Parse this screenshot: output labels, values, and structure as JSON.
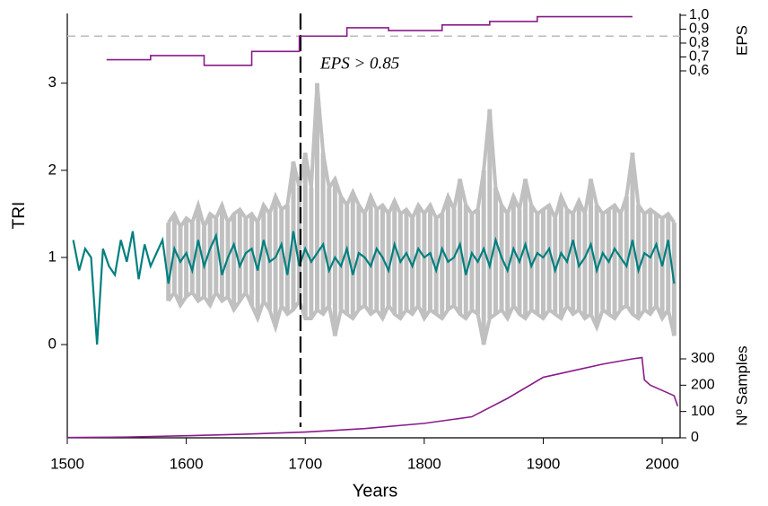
{
  "chart_data": [
    {
      "type": "range-line",
      "xlabel": "Years",
      "ylabel": "TRI",
      "xlim": [
        1500,
        2015
      ],
      "xticks": [
        1500,
        1600,
        1700,
        1800,
        1900,
        2000
      ],
      "ylim": [
        -1.07,
        3.8
      ],
      "yticks": [
        0,
        1,
        2,
        3
      ],
      "vline": 1696,
      "annotation": "EPS > 0.85",
      "x": [
        1505,
        1510,
        1515,
        1520,
        1525,
        1530,
        1535,
        1540,
        1545,
        1550,
        1555,
        1560,
        1565,
        1570,
        1575,
        1580,
        1585,
        1590,
        1595,
        1600,
        1605,
        1610,
        1615,
        1620,
        1625,
        1630,
        1635,
        1640,
        1645,
        1650,
        1655,
        1660,
        1665,
        1670,
        1675,
        1680,
        1685,
        1690,
        1695,
        1700,
        1705,
        1710,
        1715,
        1720,
        1725,
        1730,
        1735,
        1740,
        1745,
        1750,
        1755,
        1760,
        1765,
        1770,
        1775,
        1780,
        1785,
        1790,
        1795,
        1800,
        1805,
        1810,
        1815,
        1820,
        1825,
        1830,
        1835,
        1840,
        1845,
        1850,
        1855,
        1860,
        1865,
        1870,
        1875,
        1880,
        1885,
        1890,
        1895,
        1900,
        1905,
        1910,
        1915,
        1920,
        1925,
        1930,
        1935,
        1940,
        1945,
        1950,
        1955,
        1960,
        1965,
        1970,
        1975,
        1980,
        1985,
        1990,
        1995,
        2000,
        2005,
        2010
      ],
      "series": [
        {
          "color": "#c0c0c0",
          "values": [
            null,
            null,
            null,
            null,
            null,
            null,
            null,
            null,
            null,
            null,
            null,
            null,
            null,
            null,
            null,
            null,
            1.4,
            1.5,
            1.35,
            1.45,
            1.4,
            1.6,
            1.35,
            1.5,
            1.45,
            1.6,
            1.4,
            1.5,
            1.55,
            1.45,
            1.5,
            1.4,
            1.6,
            1.5,
            1.7,
            1.55,
            1.6,
            2.1,
            1.8,
            2.2,
            1.8,
            3.0,
            2.2,
            1.8,
            1.9,
            1.7,
            1.6,
            1.75,
            1.6,
            1.5,
            1.7,
            1.55,
            1.6,
            1.5,
            1.65,
            1.5,
            1.55,
            1.45,
            1.6,
            1.5,
            1.6,
            1.45,
            1.5,
            1.7,
            1.55,
            1.9,
            1.6,
            1.5,
            1.55,
            2.0,
            2.7,
            1.8,
            1.6,
            1.5,
            1.7,
            1.55,
            1.9,
            1.6,
            1.5,
            1.55,
            1.6,
            1.45,
            1.7,
            1.55,
            1.5,
            1.65,
            1.5,
            1.9,
            1.6,
            1.5,
            1.55,
            1.6,
            1.5,
            1.7,
            2.2,
            1.6,
            1.5,
            1.55,
            1.5,
            1.45,
            1.5,
            1.4
          ]
        },
        {
          "color": "#c0c0c0",
          "values": [
            null,
            null,
            null,
            null,
            null,
            null,
            null,
            null,
            null,
            null,
            null,
            null,
            null,
            null,
            null,
            null,
            0.5,
            0.6,
            0.45,
            0.55,
            0.6,
            0.5,
            0.55,
            0.45,
            0.6,
            0.5,
            0.55,
            0.4,
            0.5,
            0.6,
            0.45,
            0.3,
            0.5,
            0.4,
            0.2,
            0.45,
            0.35,
            0.4,
            0.5,
            0.3,
            0.3,
            0.4,
            0.35,
            0.45,
            0.1,
            0.4,
            0.35,
            0.3,
            0.4,
            0.45,
            0.35,
            0.4,
            0.3,
            0.45,
            0.35,
            0.3,
            0.4,
            0.35,
            0.45,
            0.3,
            0.4,
            0.35,
            0.3,
            0.4,
            0.45,
            0.35,
            0.3,
            0.4,
            0.35,
            0.0,
            0.3,
            0.35,
            0.4,
            0.3,
            0.45,
            0.35,
            0.3,
            0.4,
            0.35,
            0.3,
            0.4,
            0.35,
            0.3,
            0.45,
            0.35,
            0.4,
            0.3,
            0.35,
            0.2,
            0.4,
            0.35,
            0.3,
            0.4,
            0.45,
            0.35,
            0.3,
            0.4,
            0.35,
            0.45,
            0.3,
            0.4,
            0.1
          ]
        },
        {
          "color": "#007f7f",
          "values": [
            1.2,
            0.85,
            1.1,
            1.0,
            0.0,
            1.1,
            0.9,
            0.8,
            1.2,
            0.95,
            1.3,
            0.75,
            1.15,
            0.9,
            1.05,
            1.2,
            0.7,
            1.1,
            0.95,
            1.05,
            0.85,
            1.2,
            0.9,
            1.1,
            1.25,
            0.8,
            1.0,
            1.15,
            0.9,
            1.05,
            1.1,
            0.85,
            1.2,
            0.95,
            1.0,
            1.15,
            0.8,
            1.3,
            0.9,
            1.1,
            0.95,
            1.05,
            1.15,
            0.85,
            1.0,
            0.9,
            1.1,
            0.8,
            1.05,
            1.0,
            0.9,
            1.1,
            1.0,
            0.85,
            1.15,
            0.95,
            1.05,
            0.9,
            1.1,
            1.0,
            1.05,
            0.85,
            1.1,
            0.95,
            1.0,
            1.15,
            0.8,
            1.05,
            0.95,
            1.1,
            0.9,
            1.2,
            1.0,
            0.85,
            1.1,
            0.95,
            1.15,
            0.9,
            1.05,
            1.0,
            1.1,
            0.85,
            1.05,
            0.95,
            1.2,
            0.9,
            1.0,
            1.15,
            0.85,
            1.05,
            0.95,
            1.1,
            1.0,
            0.9,
            1.2,
            0.85,
            1.05,
            1.0,
            1.15,
            0.9,
            1.2,
            0.7
          ]
        }
      ]
    },
    {
      "type": "step",
      "ylabel": "EPS",
      "color": "#8b1a8b",
      "ylim": [
        0.6,
        1.0
      ],
      "yticks": [
        {
          "value": 0.6,
          "label": "0,6"
        },
        {
          "value": 0.7,
          "label": "0,7"
        },
        {
          "value": 0.8,
          "label": "0,8"
        },
        {
          "value": 0.9,
          "label": "0,9"
        },
        {
          "value": 1.0,
          "label": "1,0"
        }
      ],
      "threshold": 0.85,
      "x": [
        1533,
        1570,
        1615,
        1655,
        1695,
        1735,
        1770,
        1815,
        1855,
        1895,
        1975
      ],
      "values": [
        0.68,
        0.71,
        0.64,
        0.74,
        0.85,
        0.91,
        0.89,
        0.93,
        0.955,
        0.99,
        0.99
      ]
    },
    {
      "type": "line",
      "ylabel": "Nº Samples",
      "color": "#8b1a8b",
      "ylim": [
        0,
        300
      ],
      "yticks": [
        0,
        100,
        200,
        300
      ],
      "x": [
        1500,
        1550,
        1600,
        1650,
        1700,
        1750,
        1800,
        1840,
        1870,
        1900,
        1920,
        1950,
        1975,
        1983,
        1985,
        1990,
        2000,
        2010,
        2013
      ],
      "values": [
        1,
        3,
        8,
        14,
        22,
        35,
        55,
        80,
        150,
        230,
        250,
        280,
        300,
        305,
        220,
        200,
        180,
        160,
        120
      ]
    }
  ]
}
